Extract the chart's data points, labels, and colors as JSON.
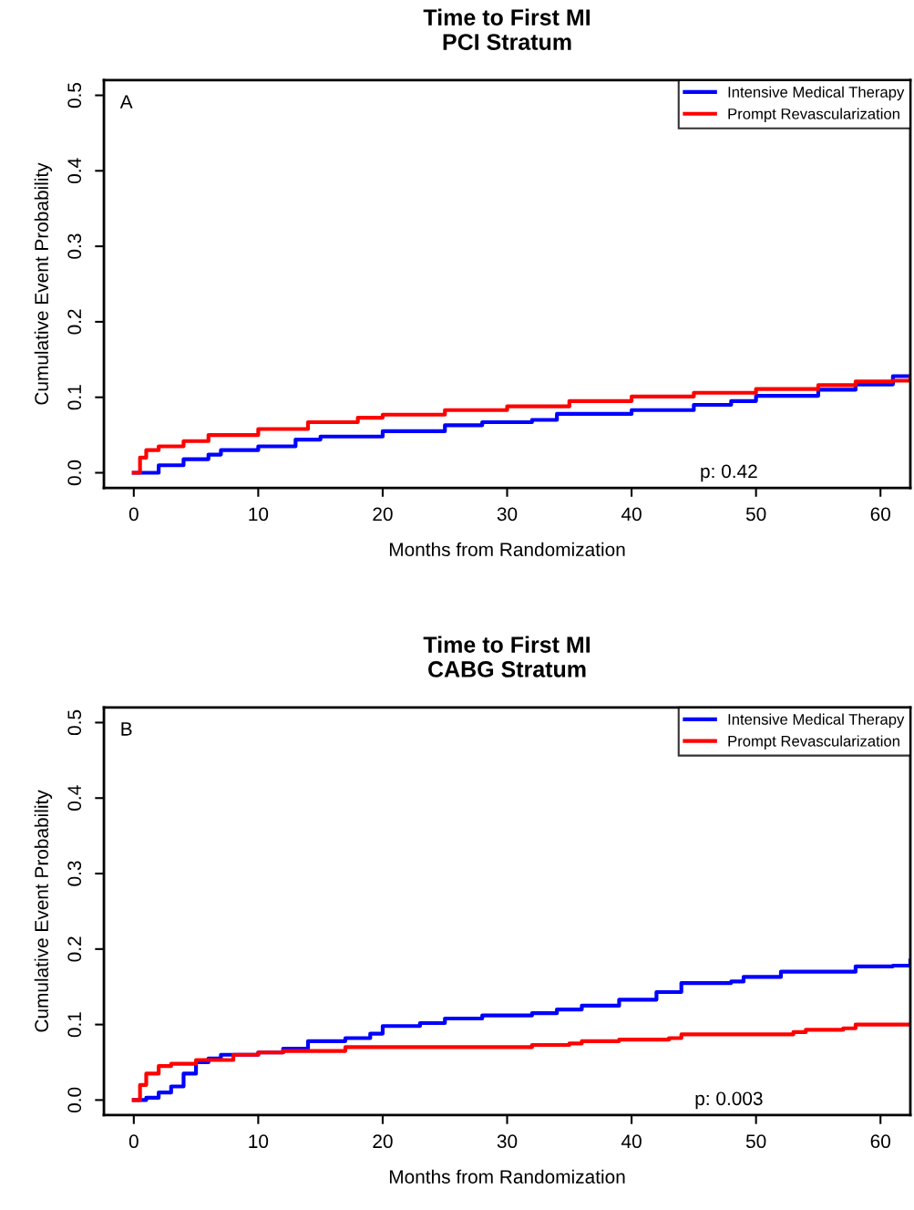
{
  "chart_data": [
    {
      "type": "step",
      "title": "Time to First MI\nPCI Stratum",
      "xlabel": "Months from Randomization",
      "ylabel": "Cumulative Event Probability",
      "annotations": [
        "A",
        "p: 0.42"
      ],
      "xlim": [
        -2.4,
        62.4
      ],
      "xticks": [
        0,
        10,
        20,
        30,
        40,
        50,
        60
      ],
      "ylim": [
        -0.02,
        0.52
      ],
      "yticks": [
        {
          "value": 0,
          "label": "0.0"
        },
        0.1,
        0.2,
        0.3,
        0.4,
        0.5
      ],
      "grid": false,
      "legend": "top right",
      "series": [
        {
          "name": "Intensive Medical Therapy",
          "color": "#0000ff",
          "x": [
            0,
            2,
            4,
            6,
            7,
            10,
            13,
            15,
            20,
            25,
            28,
            32,
            34,
            40,
            45,
            48,
            50,
            55,
            58,
            61,
            62.4
          ],
          "values": [
            0,
            0.01,
            0.018,
            0.024,
            0.03,
            0.035,
            0.044,
            0.048,
            0.055,
            0.063,
            0.067,
            0.07,
            0.078,
            0.083,
            0.09,
            0.095,
            0.102,
            0.11,
            0.117,
            0.128,
            0.128
          ]
        },
        {
          "name": "Prompt Revascularization",
          "color": "#ff0000",
          "x": [
            0,
            0.5,
            1,
            2,
            4,
            6,
            10,
            14,
            18,
            20,
            25,
            30,
            35,
            40,
            45,
            50,
            55,
            58,
            61,
            62.4
          ],
          "values": [
            0,
            0.02,
            0.03,
            0.035,
            0.042,
            0.05,
            0.058,
            0.067,
            0.073,
            0.077,
            0.083,
            0.088,
            0.095,
            0.101,
            0.106,
            0.111,
            0.116,
            0.121,
            0.122,
            0.127
          ]
        }
      ]
    },
    {
      "type": "step",
      "title": "Time to First MI\nCABG Stratum",
      "xlabel": "Months from Randomization",
      "ylabel": "Cumulative Event Probability",
      "annotations": [
        "B",
        "p: 0.003"
      ],
      "xlim": [
        -2.4,
        62.4
      ],
      "xticks": [
        0,
        10,
        20,
        30,
        40,
        50,
        60
      ],
      "ylim": [
        -0.02,
        0.52
      ],
      "yticks": [
        {
          "value": 0,
          "label": "0.0"
        },
        0.1,
        0.2,
        0.3,
        0.4,
        0.5
      ],
      "grid": false,
      "legend": "top right",
      "series": [
        {
          "name": "Intensive Medical Therapy",
          "color": "#0000ff",
          "x": [
            0,
            1,
            2,
            3,
            4,
            5,
            6,
            7,
            10,
            12,
            14,
            17,
            19,
            20,
            23,
            25,
            28,
            32,
            34,
            36,
            39,
            42,
            44,
            48,
            49,
            52,
            58,
            61,
            62.4
          ],
          "values": [
            0,
            0.003,
            0.01,
            0.018,
            0.035,
            0.05,
            0.055,
            0.06,
            0.063,
            0.068,
            0.078,
            0.082,
            0.088,
            0.098,
            0.102,
            0.108,
            0.112,
            0.115,
            0.12,
            0.125,
            0.133,
            0.143,
            0.155,
            0.157,
            0.163,
            0.17,
            0.177,
            0.178,
            0.185
          ]
        },
        {
          "name": "Prompt Revascularization",
          "color": "#ff0000",
          "x": [
            0,
            0.5,
            1,
            2,
            3,
            5,
            8,
            10,
            12,
            17,
            30,
            32,
            35,
            36,
            39,
            43,
            44,
            53,
            54,
            57,
            58,
            62.4
          ],
          "values": [
            0,
            0.02,
            0.035,
            0.045,
            0.048,
            0.053,
            0.06,
            0.063,
            0.065,
            0.07,
            0.07,
            0.073,
            0.075,
            0.078,
            0.08,
            0.082,
            0.087,
            0.09,
            0.093,
            0.095,
            0.1,
            0.1
          ]
        }
      ]
    }
  ]
}
